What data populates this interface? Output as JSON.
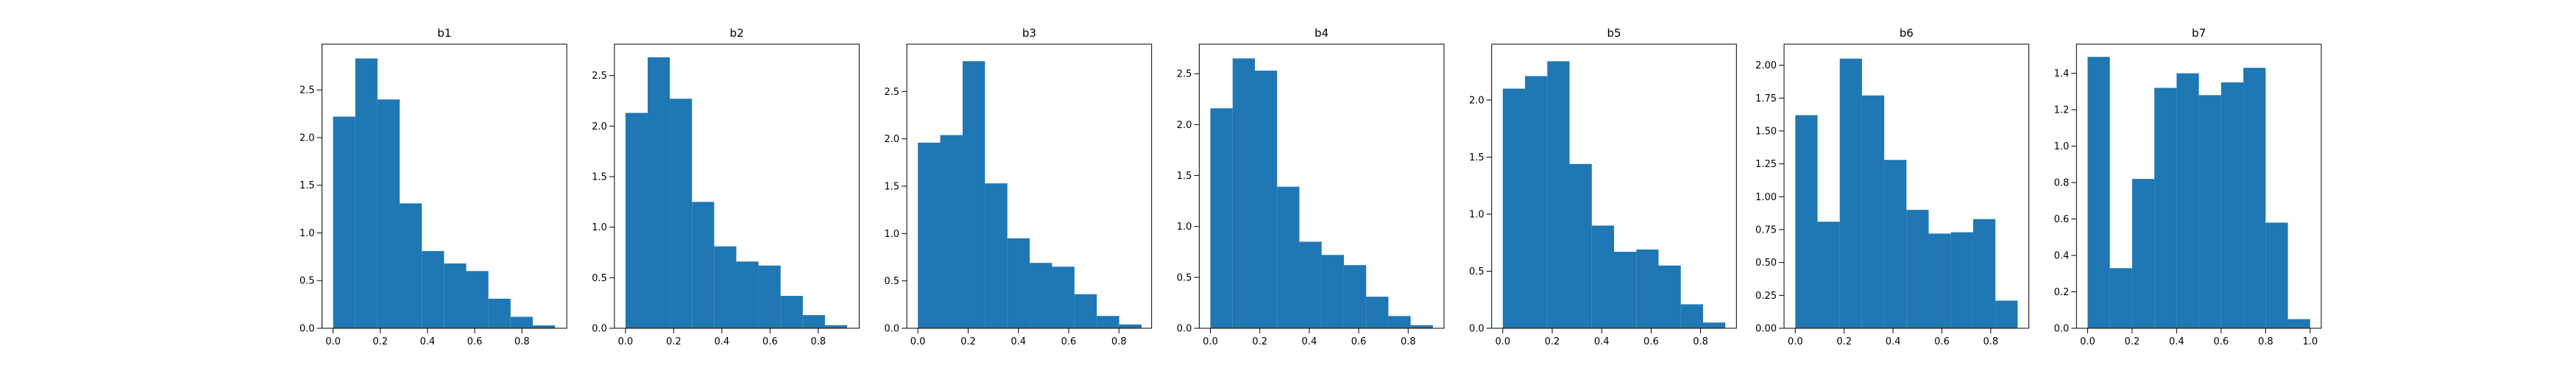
{
  "chart_data": [
    {
      "type": "histogram",
      "title": "b1",
      "color": "#1f77b4",
      "bins": [
        0,
        0.094,
        0.188,
        0.282,
        0.376,
        0.47,
        0.564,
        0.658,
        0.752,
        0.846,
        0.94
      ],
      "counts": [
        2.22,
        2.83,
        2.4,
        1.31,
        0.81,
        0.68,
        0.6,
        0.31,
        0.12,
        0.03
      ],
      "xlim": [
        -0.047,
        0.99
      ],
      "ylim": [
        0,
        2.98
      ],
      "xticks": [
        {
          "value": 0,
          "label": "0.0"
        },
        0.2,
        0.4,
        0.6,
        0.8
      ],
      "yticks": [
        {
          "value": 0,
          "label": "0.0"
        },
        0.5,
        {
          "value": 1,
          "label": "1.0"
        },
        1.5,
        {
          "value": 2,
          "label": "2.0"
        },
        2.5
      ]
    },
    {
      "type": "histogram",
      "title": "b2",
      "color": "#1f77b4",
      "bins": [
        0,
        0.092,
        0.184,
        0.276,
        0.368,
        0.46,
        0.552,
        0.644,
        0.736,
        0.828,
        0.92
      ],
      "counts": [
        2.13,
        2.68,
        2.27,
        1.25,
        0.81,
        0.66,
        0.62,
        0.32,
        0.13,
        0.03
      ],
      "xlim": [
        -0.046,
        0.97
      ],
      "ylim": [
        0,
        2.81
      ],
      "xticks": [
        {
          "value": 0,
          "label": "0.0"
        },
        0.2,
        0.4,
        0.6,
        0.8
      ],
      "yticks": [
        {
          "value": 0,
          "label": "0.0"
        },
        0.5,
        {
          "value": 1,
          "label": "1.0"
        },
        1.5,
        {
          "value": 2,
          "label": "2.0"
        },
        2.5
      ]
    },
    {
      "type": "histogram",
      "title": "b3",
      "color": "#1f77b4",
      "bins": [
        0,
        0.089,
        0.178,
        0.267,
        0.356,
        0.445,
        0.534,
        0.623,
        0.712,
        0.801,
        0.89
      ],
      "counts": [
        1.96,
        2.04,
        2.82,
        1.53,
        0.95,
        0.69,
        0.65,
        0.36,
        0.13,
        0.04
      ],
      "xlim": [
        -0.044,
        0.93
      ],
      "ylim": [
        0,
        3.0
      ],
      "xticks": [
        {
          "value": 0,
          "label": "0.0"
        },
        0.2,
        0.4,
        0.6,
        0.8
      ],
      "yticks": [
        {
          "value": 0,
          "label": "0.0"
        },
        0.5,
        {
          "value": 1,
          "label": "1.0"
        },
        1.5,
        {
          "value": 2,
          "label": "2.0"
        },
        2.5
      ]
    },
    {
      "type": "histogram",
      "title": "b4",
      "color": "#1f77b4",
      "bins": [
        0,
        0.09,
        0.18,
        0.27,
        0.36,
        0.45,
        0.54,
        0.63,
        0.72,
        0.81,
        0.9
      ],
      "counts": [
        2.16,
        2.65,
        2.53,
        1.39,
        0.85,
        0.72,
        0.62,
        0.31,
        0.12,
        0.03
      ],
      "xlim": [
        -0.045,
        0.945
      ],
      "ylim": [
        0,
        2.79
      ],
      "xticks": [
        {
          "value": 0,
          "label": "0.0"
        },
        0.2,
        0.4,
        0.6,
        0.8
      ],
      "yticks": [
        {
          "value": 0,
          "label": "0.0"
        },
        0.5,
        {
          "value": 1,
          "label": "1.0"
        },
        1.5,
        {
          "value": 2,
          "label": "2.0"
        },
        2.5
      ]
    },
    {
      "type": "histogram",
      "title": "b5",
      "color": "#1f77b4",
      "bins": [
        0,
        0.09,
        0.18,
        0.27,
        0.36,
        0.45,
        0.54,
        0.63,
        0.72,
        0.81,
        0.9
      ],
      "counts": [
        2.1,
        2.21,
        2.34,
        1.44,
        0.9,
        0.67,
        0.69,
        0.55,
        0.21,
        0.05
      ],
      "xlim": [
        -0.045,
        0.945
      ],
      "ylim": [
        0,
        2.49
      ],
      "xticks": [
        {
          "value": 0,
          "label": "0.0"
        },
        0.2,
        0.4,
        0.6,
        0.8
      ],
      "yticks": [
        {
          "value": 0,
          "label": "0.0"
        },
        0.5,
        {
          "value": 1,
          "label": "1.0"
        },
        1.5,
        {
          "value": 2,
          "label": "2.0"
        }
      ]
    },
    {
      "type": "histogram",
      "title": "b6",
      "color": "#1f77b4",
      "bins": [
        0,
        0.091,
        0.182,
        0.273,
        0.364,
        0.455,
        0.546,
        0.637,
        0.728,
        0.819,
        0.91
      ],
      "counts": [
        1.62,
        0.81,
        2.05,
        1.77,
        1.28,
        0.9,
        0.72,
        0.73,
        0.83,
        0.21
      ],
      "xlim": [
        -0.046,
        0.956
      ],
      "ylim": [
        0,
        2.16
      ],
      "xticks": [
        {
          "value": 0,
          "label": "0.0"
        },
        0.2,
        0.4,
        0.6,
        0.8
      ],
      "yticks": [
        {
          "value": 0,
          "label": "0.00"
        },
        0.25,
        {
          "value": 0.5,
          "label": "0.50"
        },
        0.75,
        {
          "value": 1,
          "label": "1.00"
        },
        1.25,
        {
          "value": 1.5,
          "label": "1.50"
        },
        1.75,
        {
          "value": 2,
          "label": "2.00"
        }
      ]
    },
    {
      "type": "histogram",
      "title": "b7",
      "color": "#1f77b4",
      "bins": [
        0,
        0.1,
        0.2,
        0.3,
        0.4,
        0.5,
        0.6,
        0.7,
        0.8,
        0.9,
        1.0
      ],
      "counts": [
        1.49,
        0.33,
        0.82,
        1.32,
        1.4,
        1.28,
        1.35,
        1.43,
        0.58,
        0.05
      ],
      "xlim": [
        -0.05,
        1.05
      ],
      "ylim": [
        0,
        1.56
      ],
      "xticks": [
        {
          "value": 0,
          "label": "0.0"
        },
        0.2,
        0.4,
        0.6,
        0.8,
        {
          "value": 1,
          "label": "1.0"
        }
      ],
      "yticks": [
        {
          "value": 0,
          "label": "0.0"
        },
        0.2,
        0.4,
        0.6,
        0.8,
        {
          "value": 1,
          "label": "1.0"
        },
        1.2,
        1.4
      ]
    }
  ]
}
